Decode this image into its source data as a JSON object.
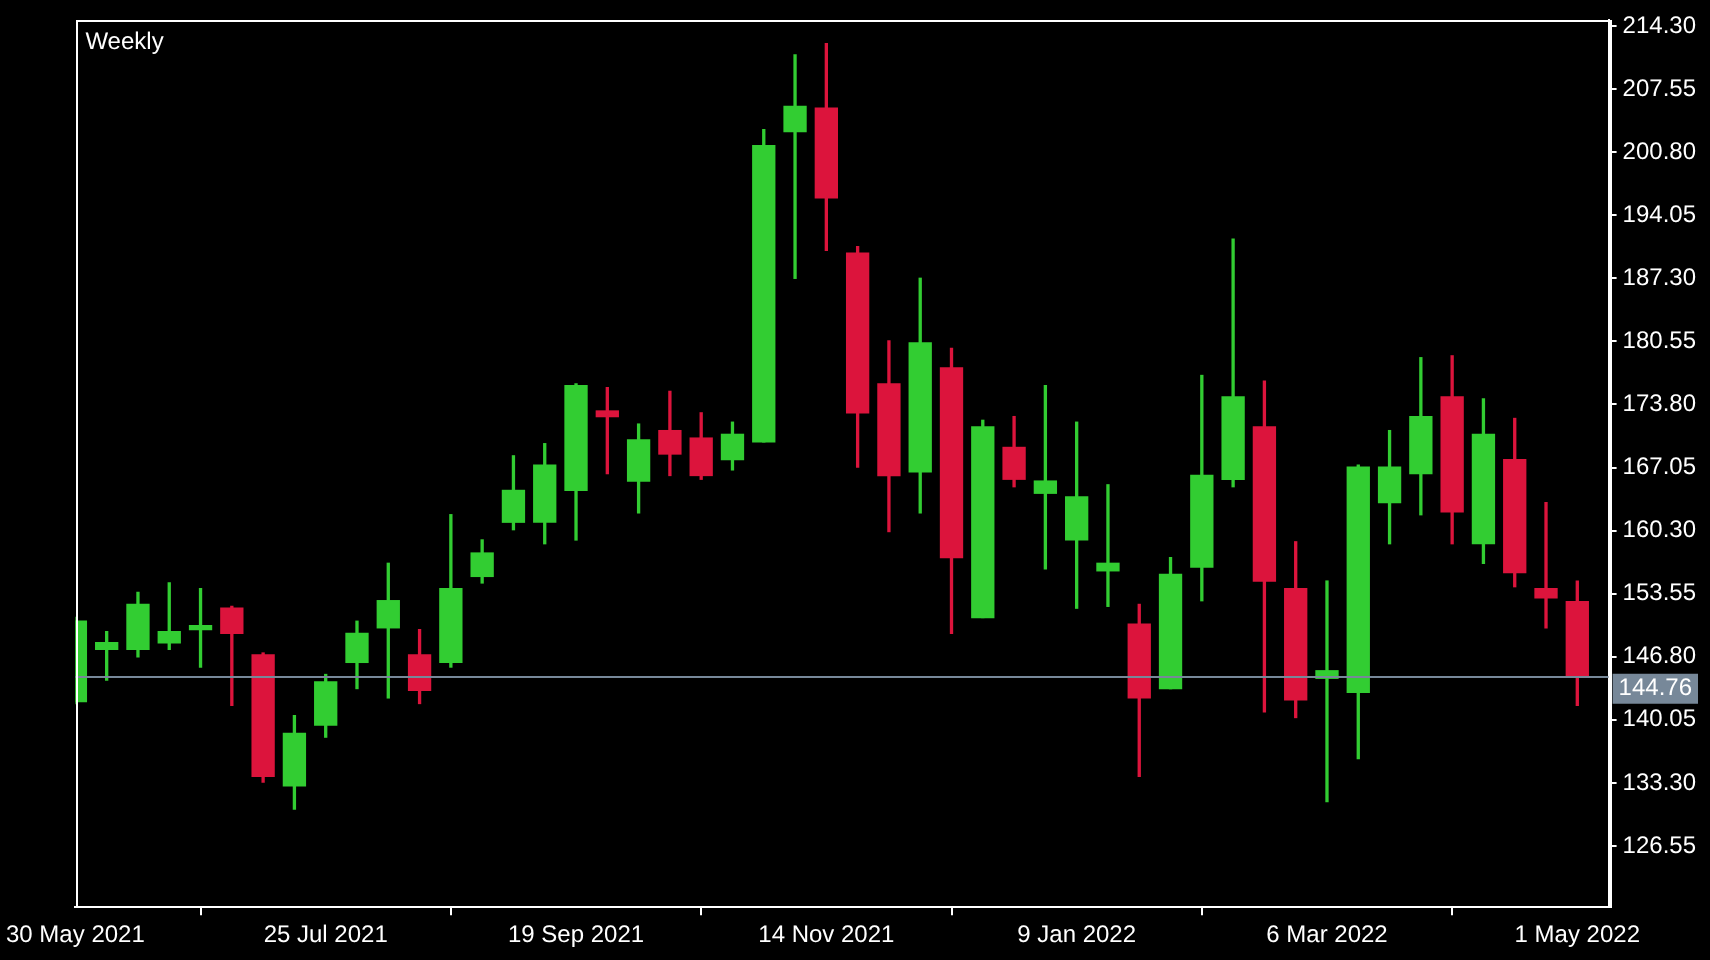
{
  "chart_data": {
    "type": "candlestick",
    "title": "Weekly",
    "x": [
      "2021-05-30",
      "2021-06-06",
      "2021-06-13",
      "2021-06-20",
      "2021-06-27",
      "2021-07-04",
      "2021-07-11",
      "2021-07-18",
      "2021-07-25",
      "2021-08-01",
      "2021-08-08",
      "2021-08-15",
      "2021-08-22",
      "2021-08-29",
      "2021-09-05",
      "2021-09-12",
      "2021-09-19",
      "2021-09-26",
      "2021-10-03",
      "2021-10-10",
      "2021-10-17",
      "2021-10-24",
      "2021-10-31",
      "2021-11-07",
      "2021-11-14",
      "2021-11-21",
      "2021-11-28",
      "2021-12-05",
      "2021-12-12",
      "2021-12-19",
      "2021-12-26",
      "2022-01-02",
      "2022-01-09",
      "2022-01-16",
      "2022-01-23",
      "2022-01-30",
      "2022-02-06",
      "2022-02-13",
      "2022-02-20",
      "2022-02-27",
      "2022-03-06",
      "2022-03-13",
      "2022-03-20",
      "2022-03-27",
      "2022-04-03",
      "2022-04-10",
      "2022-04-17",
      "2022-04-24",
      "2022-05-01"
    ],
    "ohlc": [
      [
        142.0,
        151.0,
        141.8,
        150.6
      ],
      [
        147.6,
        149.5,
        144.3,
        148.3
      ],
      [
        147.6,
        153.7,
        146.8,
        152.4
      ],
      [
        148.3,
        154.7,
        147.6,
        149.5
      ],
      [
        149.7,
        154.1,
        145.7,
        150.1
      ],
      [
        152.0,
        152.2,
        141.6,
        149.3
      ],
      [
        147.0,
        147.2,
        133.4,
        134.0
      ],
      [
        133.0,
        140.5,
        130.5,
        138.6
      ],
      [
        139.5,
        144.9,
        138.2,
        144.1
      ],
      [
        146.2,
        150.6,
        143.4,
        149.3
      ],
      [
        149.9,
        156.8,
        142.4,
        152.8
      ],
      [
        147.0,
        149.7,
        141.8,
        143.2
      ],
      [
        146.2,
        162.0,
        145.7,
        154.1
      ],
      [
        155.4,
        159.3,
        154.7,
        157.9
      ],
      [
        161.2,
        168.3,
        160.4,
        164.6
      ],
      [
        161.2,
        169.6,
        158.9,
        167.3
      ],
      [
        164.6,
        176.0,
        159.3,
        175.8
      ],
      [
        173.1,
        175.6,
        166.4,
        172.5
      ],
      [
        165.6,
        171.7,
        162.2,
        170.0
      ],
      [
        171.0,
        175.2,
        166.2,
        168.5
      ],
      [
        170.2,
        172.9,
        165.8,
        166.2
      ],
      [
        167.9,
        171.9,
        166.8,
        170.6
      ],
      [
        169.8,
        203.2,
        169.8,
        201.5
      ],
      [
        203.0,
        211.2,
        187.3,
        205.7
      ],
      [
        205.5,
        212.4,
        190.3,
        195.9
      ],
      [
        190.0,
        190.7,
        167.1,
        172.9
      ],
      [
        176.0,
        180.6,
        160.2,
        166.2
      ],
      [
        166.6,
        187.3,
        162.2,
        180.4
      ],
      [
        177.7,
        179.8,
        149.3,
        157.4
      ],
      [
        151.0,
        172.1,
        151.0,
        171.4
      ],
      [
        169.2,
        172.5,
        165.0,
        165.8
      ],
      [
        164.3,
        175.8,
        156.2,
        165.6
      ],
      [
        159.3,
        171.9,
        152.0,
        163.9
      ],
      [
        156.0,
        165.2,
        152.2,
        156.8
      ],
      [
        150.3,
        152.4,
        134.0,
        142.4
      ],
      [
        143.4,
        157.4,
        143.4,
        155.6
      ],
      [
        156.4,
        176.9,
        152.8,
        166.2
      ],
      [
        165.8,
        191.5,
        165.0,
        174.6
      ],
      [
        171.4,
        176.3,
        140.9,
        154.9
      ],
      [
        154.1,
        159.1,
        140.3,
        142.2
      ],
      [
        144.5,
        154.9,
        131.3,
        145.3
      ],
      [
        143.0,
        167.3,
        135.9,
        167.1
      ],
      [
        163.3,
        171.0,
        158.9,
        167.1
      ],
      [
        166.4,
        178.8,
        162.0,
        172.5
      ],
      [
        174.6,
        179.0,
        158.9,
        162.3
      ],
      [
        158.9,
        174.4,
        156.8,
        170.6
      ],
      [
        167.9,
        172.3,
        154.3,
        155.8
      ],
      [
        154.1,
        163.3,
        149.9,
        153.1
      ],
      [
        152.7,
        154.9,
        141.6,
        144.76
      ]
    ],
    "colors": [
      "#32cd32",
      "#32cd32",
      "#32cd32",
      "#32cd32",
      "#32cd32",
      "#dc143c",
      "#dc143c",
      "#32cd32",
      "#32cd32",
      "#32cd32",
      "#32cd32",
      "#dc143c",
      "#32cd32",
      "#32cd32",
      "#32cd32",
      "#32cd32",
      "#32cd32",
      "#dc143c",
      "#32cd32",
      "#dc143c",
      "#dc143c",
      "#32cd32",
      "#32cd32",
      "#32cd32",
      "#dc143c",
      "#dc143c",
      "#dc143c",
      "#32cd32",
      "#dc143c",
      "#32cd32",
      "#dc143c",
      "#32cd32",
      "#32cd32",
      "#32cd32",
      "#dc143c",
      "#32cd32",
      "#32cd32",
      "#32cd32",
      "#dc143c",
      "#dc143c",
      "#32cd32",
      "#32cd32",
      "#32cd32",
      "#32cd32",
      "#dc143c",
      "#32cd32",
      "#dc143c",
      "#dc143c",
      "#dc143c"
    ],
    "xlim": [
      "2021-05-30",
      "2022-05-08"
    ],
    "xticks": [
      {
        "value": "2021-05-30",
        "label": "30 May 2021"
      },
      {
        "value": "2021-07-25",
        "label": "25 Jul 2021"
      },
      {
        "value": "2021-09-19",
        "label": "19 Sep 2021"
      },
      {
        "value": "2021-11-14",
        "label": "14 Nov 2021"
      },
      {
        "value": "2022-01-09",
        "label": "9 Jan 2022"
      },
      {
        "value": "2022-03-06",
        "label": "6 Mar 2022"
      },
      {
        "value": "2022-05-01",
        "label": "1 May 2022"
      }
    ],
    "ylim": [
      120.0,
      214.9
    ],
    "yticks": [
      {
        "value": 214.3,
        "label": "214.30"
      },
      {
        "value": 207.55,
        "label": "207.55"
      },
      {
        "value": 200.8,
        "label": "200.80"
      },
      {
        "value": 194.05,
        "label": "194.05"
      },
      {
        "value": 187.3,
        "label": "187.30"
      },
      {
        "value": 180.55,
        "label": "180.55"
      },
      {
        "value": 173.8,
        "label": "173.80"
      },
      {
        "value": 167.05,
        "label": "167.05"
      },
      {
        "value": 160.3,
        "label": "160.30"
      },
      {
        "value": 153.55,
        "label": "153.55"
      },
      {
        "value": 146.8,
        "label": "146.80"
      },
      {
        "value": 140.05,
        "label": "140.05"
      },
      {
        "value": 133.3,
        "label": "133.30"
      },
      {
        "value": 126.55,
        "label": "126.55"
      }
    ],
    "ref_lines": [
      {
        "axis": "y",
        "value": 144.76,
        "label": "144.76",
        "color": "#778899"
      }
    ]
  }
}
